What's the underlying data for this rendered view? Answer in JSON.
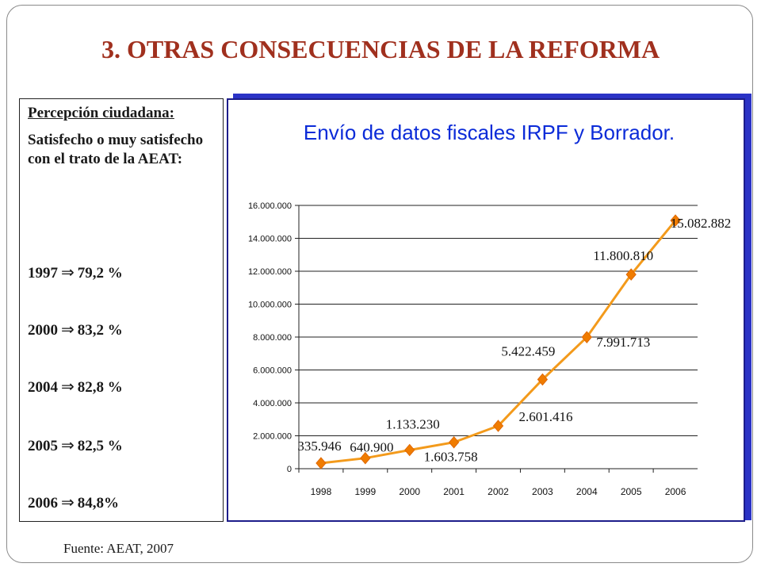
{
  "slide": {
    "title": "3. OTRAS CONSECUENCIAS DE LA REFORMA",
    "source": "Fuente: AEAT, 2007"
  },
  "perception": {
    "heading": "Percepción ciudadana:",
    "subtitle": "Satisfecho o muy satisfecho con el trato de la AEAT:",
    "arrow_glyph": "⇒",
    "rows": [
      {
        "year": "1997",
        "value": "79,2 %"
      },
      {
        "year": "2000",
        "value": "83,2 %"
      },
      {
        "year": "2004",
        "value": "82,8 %"
      },
      {
        "year": "2005",
        "value": "82,5 %"
      },
      {
        "year": "2006",
        "value": "84,8%"
      }
    ]
  },
  "chart_data": {
    "type": "line",
    "title": "Envío de datos fiscales IRPF y Borrador.",
    "categories": [
      "1998",
      "1999",
      "2000",
      "2001",
      "2002",
      "2003",
      "2004",
      "2005",
      "2006"
    ],
    "values": [
      335946,
      640900,
      1133230,
      1603758,
      2601416,
      5422459,
      7991713,
      11800810,
      15082882
    ],
    "data_labels": [
      "335.946",
      "640.900",
      "1.133.230",
      "1.603.758",
      "2.601.416",
      "5.422.459",
      "7.991.713",
      "11.800.810",
      "15.082.882"
    ],
    "ylim": [
      0,
      16000000
    ],
    "yticks": [
      0,
      2000000,
      4000000,
      6000000,
      8000000,
      10000000,
      12000000,
      14000000,
      16000000
    ],
    "ytick_labels": [
      "0",
      "2.000.000",
      "4.000.000",
      "6.000.000",
      "8.000.000",
      "10.000.000",
      "12.000.000",
      "14.000.000",
      "16.000.000"
    ],
    "grid": true,
    "line_color": "#f39a1b",
    "marker_color": "#f07c00",
    "title_color": "#0b2bd8"
  }
}
